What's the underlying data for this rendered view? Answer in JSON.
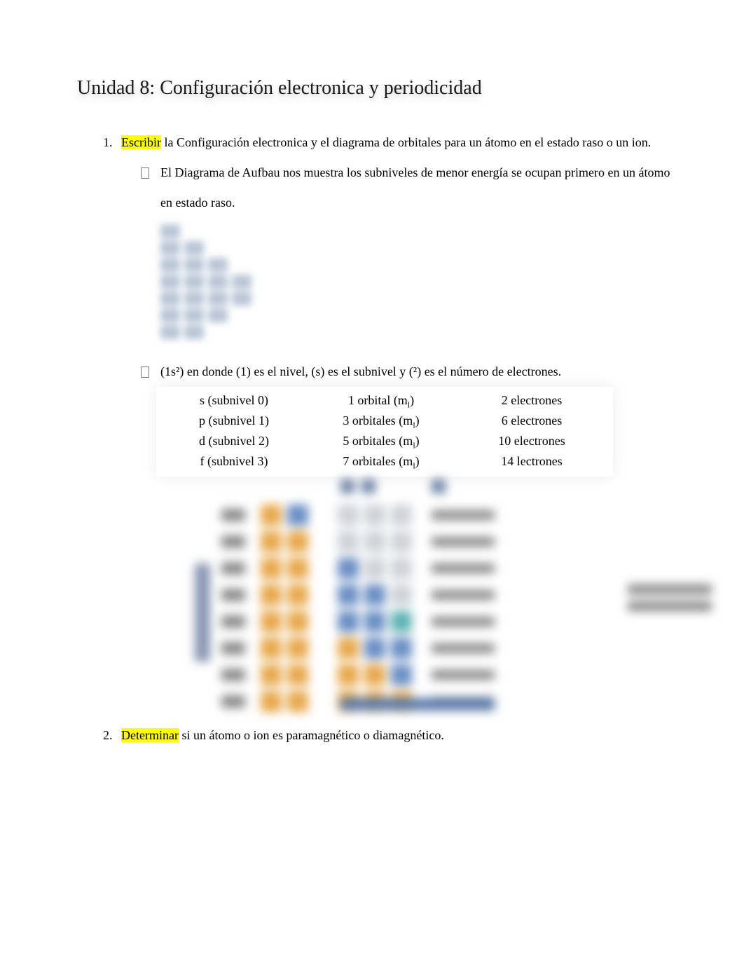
{
  "title": "Unidad 8: Configuración electronica y periodicidad",
  "items": [
    {
      "highlight": "Escribir",
      "rest": " la Configuración electronica y el diagrama de orbitales para un átomo en el estado raso o un ion."
    },
    {
      "highlight": "Determinar",
      "rest": " si un átomo o ion es paramagnético o diamagnético."
    }
  ],
  "bullets": [
    "El Diagrama de Aufbau nos muestra los subniveles de menor energía se ocupan primero en un átomo en estado raso.",
    "(1s²) en donde (1) es el nivel, (s) es el subnivel y (²) es el número de electrones."
  ],
  "aufbau": {
    "layout": [
      1,
      2,
      3,
      4,
      4,
      3,
      2
    ],
    "cell_color": "#b9c6d6"
  },
  "orbital_table": {
    "rows": [
      {
        "c1": "s (subnivel 0)",
        "c2_pre": "1 orbital (m",
        "c2_sub": "l",
        "c2_post": ")",
        "c3": "2 electrones"
      },
      {
        "c1": "p (subnivel 1)",
        "c2_pre": "3 orbitales (m",
        "c2_sub": "l",
        "c2_post": ")",
        "c3": "6 electrones"
      },
      {
        "c1": "d (subnivel 2)",
        "c2_pre": "5 orbitales (m",
        "c2_sub": "l",
        "c2_post": ")",
        "c3": "10 electrones"
      },
      {
        "c1": "f (subnivel 3)",
        "c2_pre": "7 orbitales (m",
        "c2_sub": "l",
        "c2_post": ")",
        "c3": "14  lectrones"
      }
    ]
  },
  "blur_diagram": {
    "row_count": 8,
    "colors": {
      "orange": "#e8a94e",
      "blue": "#6b8fc4",
      "teal": "#5fb3b3",
      "gray": "#cfd3d8"
    },
    "rows": [
      [
        "orange",
        "blue",
        "gap",
        "gray",
        "gray",
        "gray"
      ],
      [
        "orange",
        "orange",
        "gap",
        "gray",
        "gray",
        "gray"
      ],
      [
        "orange",
        "orange",
        "gap",
        "blue",
        "gray",
        "gray"
      ],
      [
        "orange",
        "orange",
        "gap",
        "blue",
        "blue",
        "gray"
      ],
      [
        "orange",
        "orange",
        "gap",
        "blue",
        "blue",
        "teal"
      ],
      [
        "orange",
        "orange",
        "gap",
        "orange",
        "blue",
        "blue"
      ],
      [
        "orange",
        "orange",
        "gap",
        "orange",
        "orange",
        "blue"
      ],
      [
        "orange",
        "orange",
        "gap",
        "orange",
        "orange",
        "orange"
      ]
    ]
  }
}
